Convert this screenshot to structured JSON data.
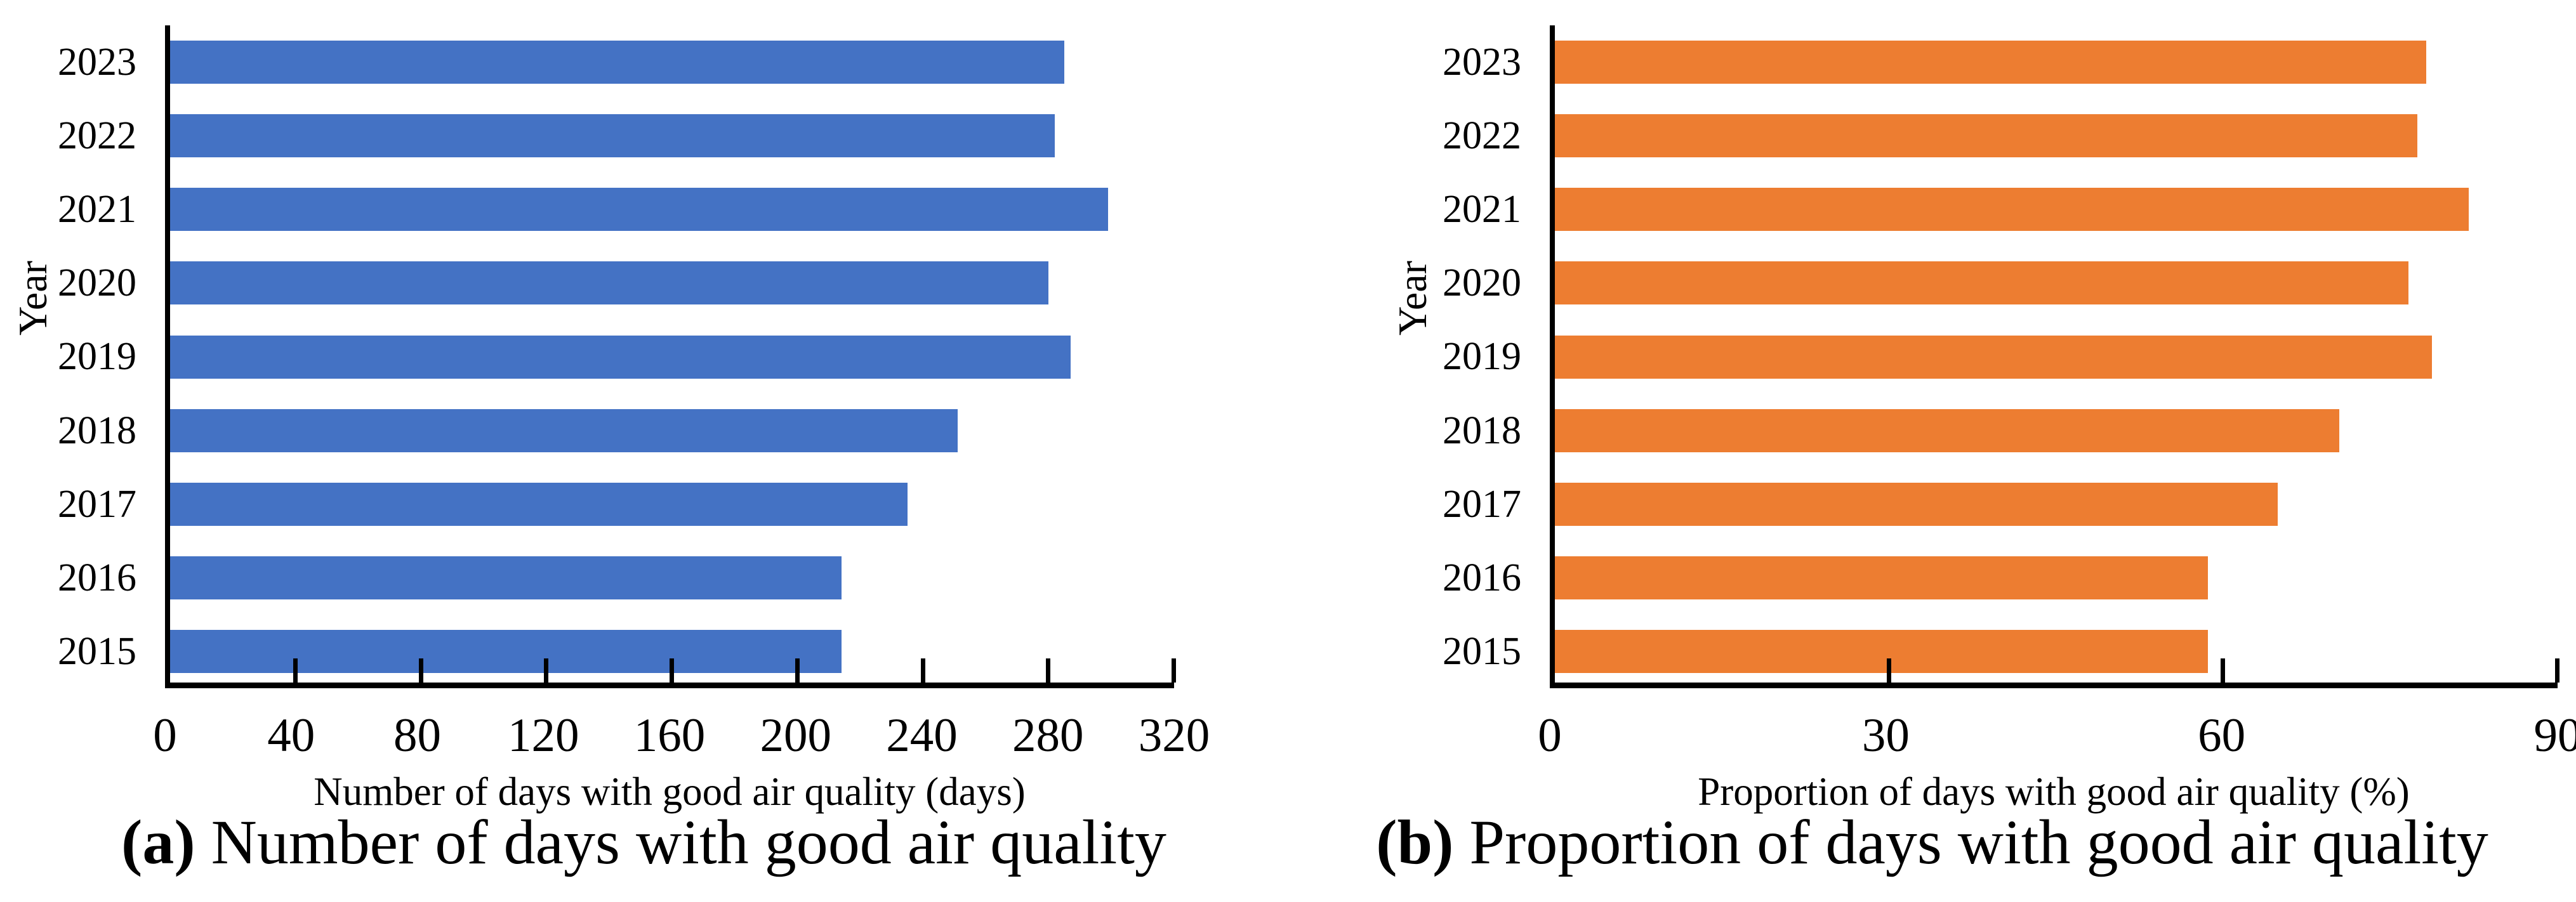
{
  "figure": {
    "description": "Two-panel horizontal bar chart figure, years 2015-2023",
    "background": "#ffffff",
    "text_color": "#000000"
  },
  "chart_data": [
    {
      "type": "bar",
      "orientation": "horizontal",
      "caption_label": "(a)",
      "caption_text": "Number of days with good air quality",
      "xlabel": "Number of days with good air quality (days)",
      "ylabel": "Year",
      "categories_top_to_bottom": [
        "2023",
        "2022",
        "2021",
        "2020",
        "2019",
        "2018",
        "2017",
        "2016",
        "2015"
      ],
      "values": [
        285,
        282,
        299,
        280,
        287,
        251,
        235,
        214,
        214
      ],
      "xlim": [
        0,
        320
      ],
      "xticks": [
        0,
        40,
        80,
        120,
        160,
        200,
        240,
        280,
        320
      ],
      "bar_color": "#4472C4",
      "axis_color": "#000000",
      "grid": false,
      "legend": false
    },
    {
      "type": "bar",
      "orientation": "horizontal",
      "caption_label": "(b)",
      "caption_text": "Proportion of days with good air quality",
      "xlabel": "Proportion of days with good air quality (%)",
      "ylabel": "Year",
      "categories_top_to_bottom": [
        "2023",
        "2022",
        "2021",
        "2020",
        "2019",
        "2018",
        "2017",
        "2016",
        "2015"
      ],
      "values": [
        78.2,
        77.4,
        82.0,
        76.6,
        78.7,
        70.4,
        64.9,
        58.6,
        58.6
      ],
      "xlim": [
        0,
        90
      ],
      "xticks": [
        0,
        30,
        60,
        90
      ],
      "bar_color": "#ED7D31",
      "axis_color": "#000000",
      "grid": false,
      "legend": false
    }
  ]
}
